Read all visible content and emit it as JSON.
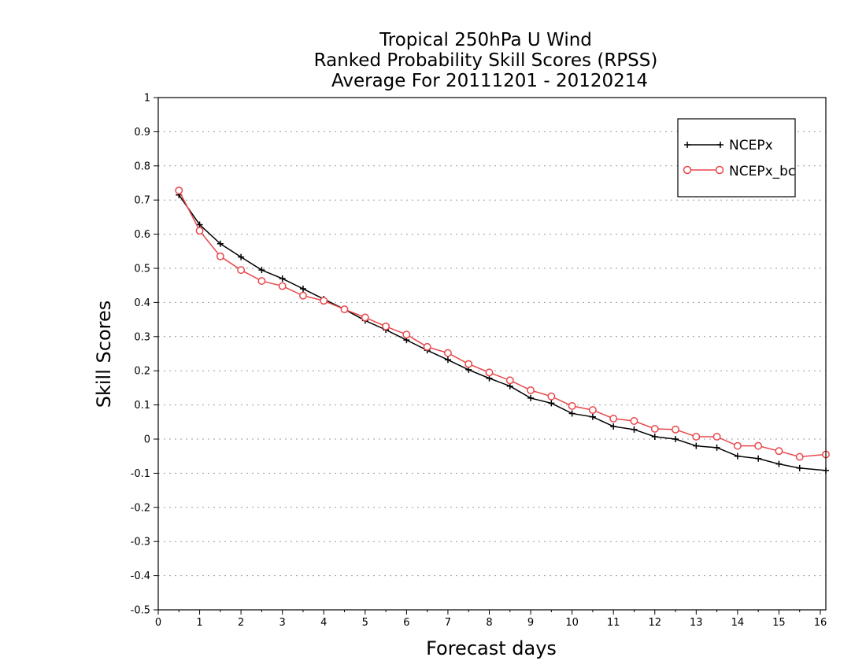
{
  "chart_data": {
    "type": "line",
    "title_lines": [
      "Tropical 250hPa U Wind",
      "Ranked Probability Skill Scores (RPSS)",
      "Average For 20111201 - 20120214"
    ],
    "xlabel": "Forecast days",
    "ylabel": "Skill Scores",
    "xlim": [
      0,
      16.3
    ],
    "ylim": [
      -0.5,
      1
    ],
    "x_ticks": [
      0,
      1,
      2,
      3,
      4,
      5,
      6,
      7,
      8,
      9,
      10,
      11,
      12,
      13,
      14,
      15,
      16
    ],
    "x_tick_labels": [
      "0",
      "1",
      "2",
      "3",
      "4",
      "5",
      "6",
      "7",
      "8",
      "9",
      "10",
      "11",
      "12",
      "13",
      "14",
      "15",
      "16"
    ],
    "y_ticks": [
      -0.5,
      -0.4,
      -0.3,
      -0.2,
      -0.1,
      0,
      0.1,
      0.2,
      0.3,
      0.4,
      0.5,
      0.6,
      0.7,
      0.8,
      0.9,
      1
    ],
    "y_tick_labels": [
      "-0.5",
      "-0.4",
      "-0.3",
      "-0.2",
      "-0.1",
      "0",
      "0.1",
      "0.2",
      "0.3",
      "0.4",
      "0.5",
      "0.6",
      "0.7",
      "0.8",
      "0.9",
      "1"
    ],
    "grid": "horizontal dotted",
    "legend_position": "top-right",
    "x": [
      0.5,
      1,
      1.5,
      2,
      2.5,
      3,
      3.5,
      4,
      4.5,
      5,
      5.5,
      6,
      6.5,
      7,
      7.5,
      8,
      8.5,
      9,
      9.5,
      10,
      10.5,
      11,
      11.5,
      12,
      12.5,
      13,
      13.5,
      14,
      14.5,
      15,
      15.5,
      16.3
    ],
    "series": [
      {
        "name": "NCEPx",
        "color": "#000000",
        "marker": "plus",
        "values": [
          0.715,
          0.628,
          0.572,
          0.533,
          0.495,
          0.47,
          0.44,
          0.41,
          0.38,
          0.347,
          0.32,
          0.29,
          0.26,
          0.232,
          0.203,
          0.178,
          0.155,
          0.12,
          0.105,
          0.075,
          0.065,
          0.037,
          0.028,
          0.007,
          0.0,
          -0.02,
          -0.025,
          -0.05,
          -0.057,
          -0.073,
          -0.085,
          -0.092
        ]
      },
      {
        "name": "NCEPx_bc",
        "color": "#e8474b",
        "marker": "circle",
        "values": [
          0.728,
          0.61,
          0.535,
          0.495,
          0.463,
          0.448,
          0.42,
          0.405,
          0.38,
          0.356,
          0.33,
          0.306,
          0.27,
          0.252,
          0.22,
          0.195,
          0.172,
          0.143,
          0.125,
          0.097,
          0.085,
          0.06,
          0.053,
          0.03,
          0.028,
          0.007,
          0.007,
          -0.02,
          -0.02,
          -0.035,
          -0.052,
          -0.045
        ]
      }
    ]
  }
}
